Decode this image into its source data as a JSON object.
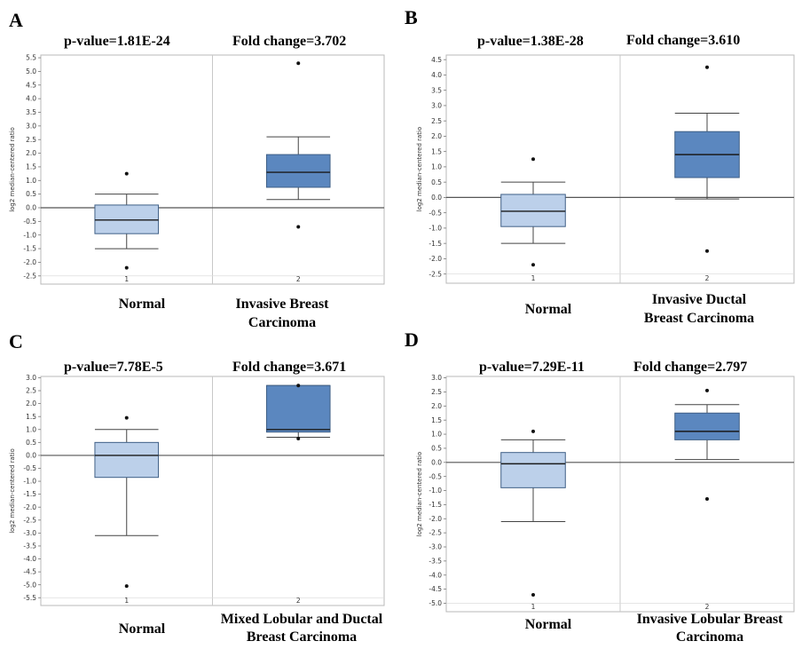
{
  "chart_data": [
    {
      "type": "box",
      "panel_letter": "A",
      "p_value_text": "p-value=1.81E-24",
      "fold_change_text": "Fold change=3.702",
      "ylabel": "log2 median-centered ratio",
      "ylim": [
        -2.8,
        5.6
      ],
      "yticks": [
        5.5,
        5.0,
        4.5,
        4.0,
        3.5,
        3.0,
        2.5,
        2.0,
        1.5,
        1.0,
        0.5,
        0.0,
        -0.5,
        -1.0,
        -1.5,
        -2.0,
        -2.5
      ],
      "tick_labels": [
        "5.5",
        "5.0",
        "4.5",
        "4.0",
        "3.5",
        "3.0",
        "2.5",
        "2.0",
        "1.5",
        "1.0",
        "0.5",
        "0.0",
        "-0.5",
        "-1.0",
        "-1.5",
        "-2.0",
        "-2.5"
      ],
      "x_ticks": [
        "1",
        "2"
      ],
      "group_labels": [
        [
          "Normal"
        ],
        [
          "Invasive Breast",
          "Carcinoma"
        ]
      ],
      "boxes": [
        {
          "whisker_low": -1.5,
          "q1": -0.95,
          "median": -0.45,
          "q3": 0.1,
          "whisker_high": 0.5,
          "outliers": [
            1.25,
            -2.2
          ],
          "color": "#bcd0ea"
        },
        {
          "whisker_low": 0.3,
          "q1": 0.75,
          "median": 1.3,
          "q3": 1.95,
          "whisker_high": 2.6,
          "outliers": [
            5.3,
            -0.7
          ],
          "color": "#5b87bf"
        }
      ]
    },
    {
      "type": "box",
      "panel_letter": "B",
      "p_value_text": "p-value=1.38E-28",
      "fold_change_text": "Fold change=3.610",
      "ylabel": "log2 median-centered ratio",
      "ylim": [
        -2.8,
        4.65
      ],
      "yticks": [
        4.5,
        4.0,
        3.5,
        3.0,
        2.5,
        2.0,
        1.5,
        1.0,
        0.5,
        0.0,
        -0.5,
        -1.0,
        -1.5,
        -2.0,
        -2.5
      ],
      "tick_labels": [
        "4.5",
        "4.0",
        "3.5",
        "3.0",
        "2.5",
        "2.0",
        "1.5",
        "1.0",
        "0.5",
        "0.0",
        "-0.5",
        "-1.0",
        "-1.5",
        "-2.0",
        "-2.5"
      ],
      "x_ticks": [
        "1",
        "2"
      ],
      "group_labels": [
        [
          "Normal"
        ],
        [
          "Invasive Ductal",
          "Breast Carcinoma"
        ]
      ],
      "boxes": [
        {
          "whisker_low": -1.5,
          "q1": -0.95,
          "median": -0.45,
          "q3": 0.1,
          "whisker_high": 0.5,
          "outliers": [
            1.25,
            -2.2
          ],
          "color": "#bcd0ea"
        },
        {
          "whisker_low": -0.05,
          "q1": 0.65,
          "median": 1.4,
          "q3": 2.15,
          "whisker_high": 2.75,
          "outliers": [
            4.25,
            -1.75
          ],
          "color": "#5b87bf"
        }
      ]
    },
    {
      "type": "box",
      "panel_letter": "C",
      "p_value_text": "p-value=7.78E-5",
      "fold_change_text": "Fold change=3.671",
      "ylabel": "log2 median-centered ratio",
      "ylim": [
        -5.8,
        3.05
      ],
      "yticks": [
        3.0,
        2.5,
        2.0,
        1.5,
        1.0,
        0.5,
        0.0,
        -0.5,
        -1.0,
        -1.5,
        -2.0,
        -2.5,
        -3.0,
        -3.5,
        -4.0,
        -4.5,
        -5.0,
        -5.5
      ],
      "tick_labels": [
        "3.0",
        "2.5",
        "2.0",
        "1.5",
        "1.0",
        "0.5",
        "0.0",
        "-0.5",
        "-1.0",
        "-1.5",
        "-2.0",
        "-2.5",
        "-3.0",
        "-3.5",
        "-4.0",
        "-4.5",
        "-5.0",
        "-5.5"
      ],
      "x_ticks": [
        "1",
        "2"
      ],
      "group_labels": [
        [
          "Normal"
        ],
        [
          "Mixed Lobular and Ductal",
          "Breast Carcinoma"
        ]
      ],
      "boxes": [
        {
          "whisker_low": -3.1,
          "q1": -0.85,
          "median": 0.0,
          "q3": 0.5,
          "whisker_high": 1.0,
          "outliers": [
            1.45,
            -5.05
          ],
          "color": "#bcd0ea"
        },
        {
          "whisker_low": 0.7,
          "q1": 0.9,
          "median": 1.0,
          "q3": 2.7,
          "whisker_high": 2.7,
          "outliers": [
            2.7,
            0.65
          ],
          "color": "#5b87bf"
        }
      ]
    },
    {
      "type": "box",
      "panel_letter": "D",
      "p_value_text": "p-value=7.29E-11",
      "fold_change_text": "Fold change=2.797",
      "ylabel": "log2 median-centered ratio",
      "ylim": [
        -5.3,
        3.05
      ],
      "yticks": [
        3.0,
        2.5,
        2.0,
        1.5,
        1.0,
        0.5,
        0.0,
        -0.5,
        -1.0,
        -1.5,
        -2.0,
        -2.5,
        -3.0,
        -3.5,
        -4.0,
        -4.5,
        -5.0
      ],
      "tick_labels": [
        "3.0",
        "2.5",
        "2.0",
        "1.5",
        "1.0",
        "0.5",
        "0.0",
        "-0.5",
        "-1.0",
        "-1.5",
        "-2.0",
        "-2.5",
        "-3.0",
        "-3.5",
        "-4.0",
        "-4.5",
        "-5.0"
      ],
      "x_ticks": [
        "1",
        "2"
      ],
      "group_labels": [
        [
          "Normal"
        ],
        [
          "Invasive Lobular  Breast",
          "Carcinoma"
        ]
      ],
      "boxes": [
        {
          "whisker_low": -2.1,
          "q1": -0.9,
          "median": -0.05,
          "q3": 0.35,
          "whisker_high": 0.8,
          "outliers": [
            1.1,
            -4.7
          ],
          "color": "#bcd0ea"
        },
        {
          "whisker_low": 0.1,
          "q1": 0.8,
          "median": 1.1,
          "q3": 1.75,
          "whisker_high": 2.05,
          "outliers": [
            2.55,
            -1.3
          ],
          "color": "#5b87bf"
        }
      ]
    }
  ],
  "colors": {
    "frame": "#b8b8b8",
    "separator": "#c8c8c8",
    "zero_line": "#555555",
    "whisker": "#444444",
    "box_edge": "#3f5f86",
    "outlier": "#111111"
  }
}
